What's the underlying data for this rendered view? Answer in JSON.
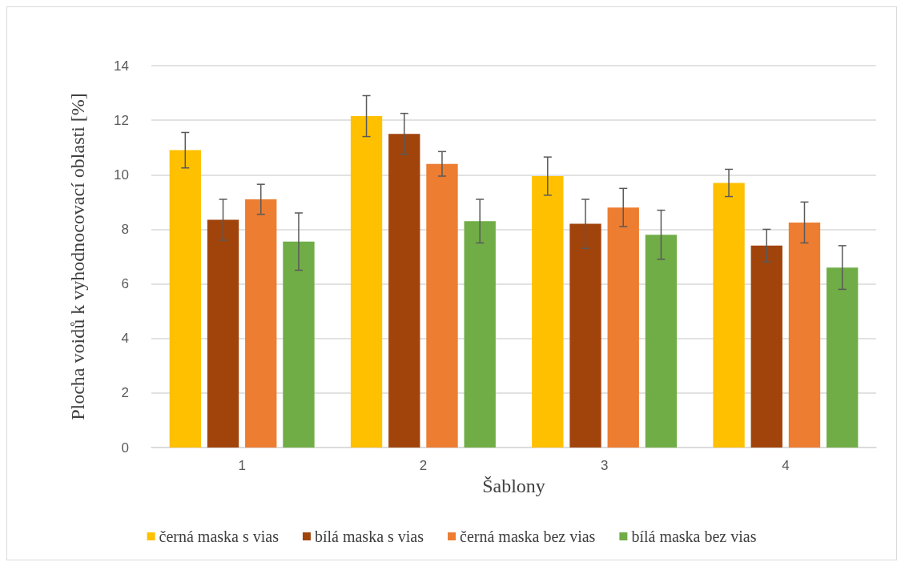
{
  "chart_data": {
    "type": "bar",
    "xlabel": "Šablony",
    "ylabel": "Plocha voidů k vyhodnocovací oblasti [%]",
    "categories": [
      "1",
      "2",
      "3",
      "4"
    ],
    "series": [
      {
        "name": "černá maska s vias",
        "color": "#ffc000",
        "values": [
          10.9,
          12.15,
          9.95,
          9.7
        ],
        "errors": [
          0.65,
          0.75,
          0.7,
          0.5
        ]
      },
      {
        "name": "bílá maska s vias",
        "color": "#a0440c",
        "values": [
          8.35,
          11.5,
          8.2,
          7.4
        ],
        "errors": [
          0.75,
          0.75,
          0.9,
          0.6
        ]
      },
      {
        "name": "černá maska bez vias",
        "color": "#ed7d31",
        "values": [
          9.1,
          10.4,
          8.8,
          8.25
        ],
        "errors": [
          0.55,
          0.45,
          0.7,
          0.75
        ]
      },
      {
        "name": "bílá maska bez vias",
        "color": "#70ad47",
        "values": [
          7.55,
          8.3,
          7.8,
          6.6
        ],
        "errors": [
          1.05,
          0.8,
          0.9,
          0.8
        ]
      }
    ],
    "ylim": [
      0,
      14
    ],
    "yticks": [
      0,
      2,
      4,
      6,
      8,
      10,
      12,
      14
    ],
    "grid": "y",
    "legend": "bottom"
  }
}
